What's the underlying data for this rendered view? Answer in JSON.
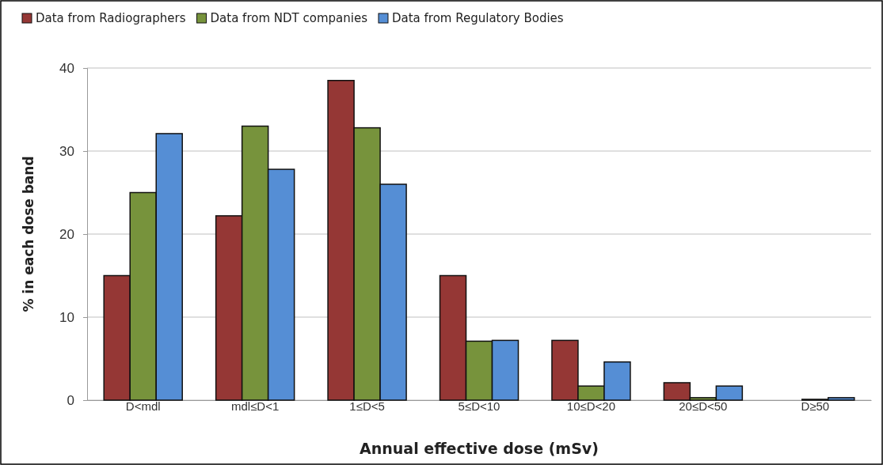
{
  "chart_data": {
    "type": "bar",
    "xlabel": "Annual  effective dose (mSv)",
    "ylabel": "% in each dose band",
    "categories": [
      "D<mdl",
      "mdl≤D<1",
      "1≤D<5",
      "5≤D<10",
      "10≤D<20",
      "20≤D<50",
      "D≥50"
    ],
    "series": [
      {
        "name": "Data from Radiographers",
        "color": "#953735",
        "values": [
          15,
          22.2,
          38.5,
          15,
          7.2,
          2.1,
          0
        ]
      },
      {
        "name": "Data from NDT companies",
        "color": "#77933c",
        "values": [
          25,
          33,
          32.8,
          7.1,
          1.7,
          0.3,
          0.1
        ]
      },
      {
        "name": "Data from Regulatory Bodies",
        "color": "#558ed5",
        "values": [
          32.1,
          27.8,
          26,
          7.2,
          4.6,
          1.7,
          0.3
        ]
      }
    ],
    "ylim": [
      0,
      40
    ],
    "yticks": [
      0,
      10,
      20,
      30,
      40
    ],
    "grid": "y",
    "legend": "top left"
  }
}
